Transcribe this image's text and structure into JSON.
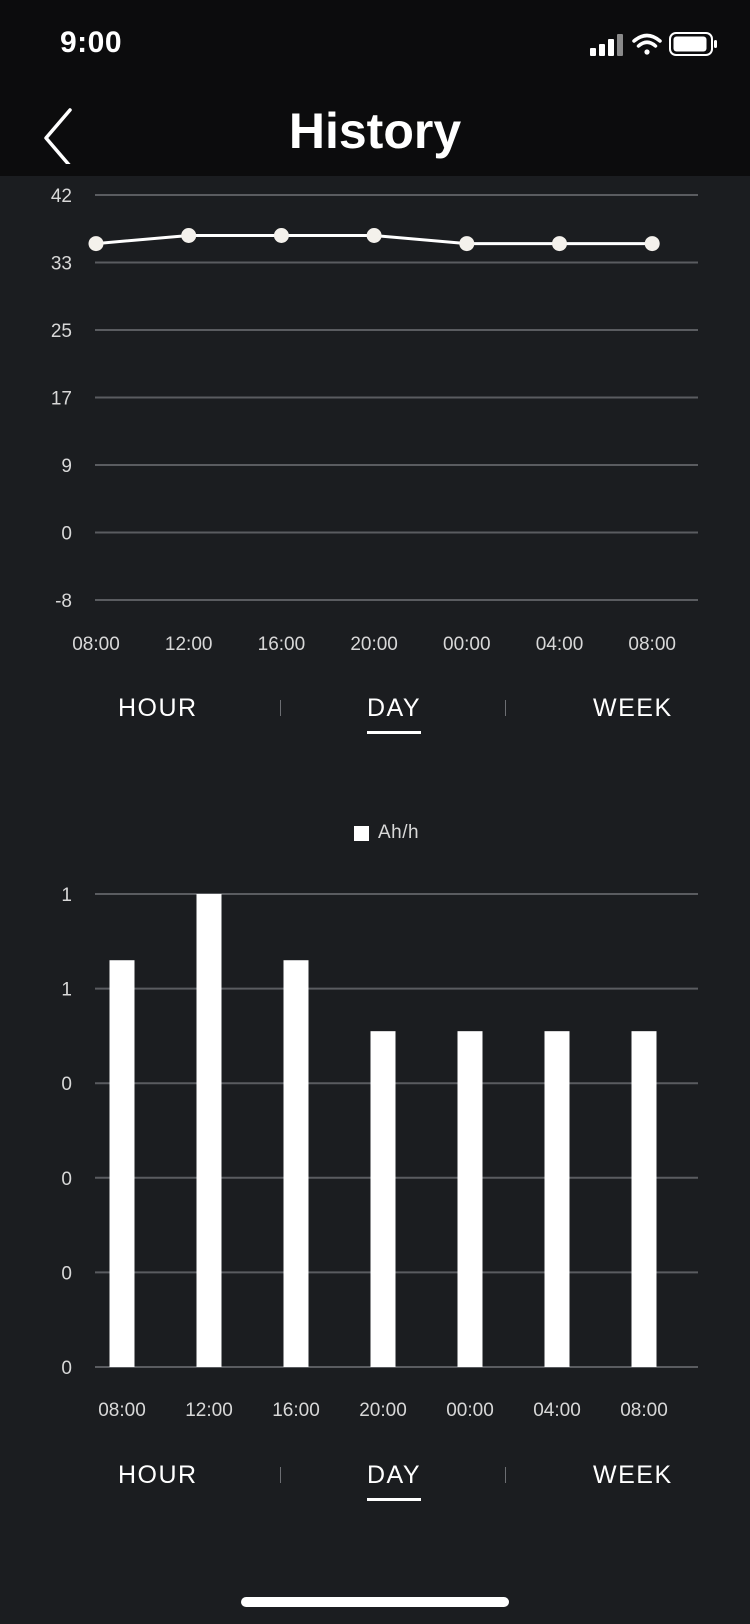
{
  "status_bar": {
    "time": "9:00"
  },
  "nav": {
    "title": "History"
  },
  "temperature_chart": {
    "type": "line",
    "x": [
      "08:00",
      "12:00",
      "16:00",
      "20:00",
      "00:00",
      "04:00",
      "08:00"
    ],
    "y": [
      36,
      37,
      37,
      37,
      36,
      36,
      36
    ],
    "yticks": [
      "42",
      "33",
      "25",
      "17",
      "9",
      "0",
      "-8"
    ],
    "ylim": [
      -8,
      42
    ],
    "grid": true,
    "line_color": "#ffffff"
  },
  "range_selector_top": {
    "options": [
      "HOUR",
      "DAY",
      "WEEK"
    ],
    "selected": "DAY"
  },
  "chart_data": {
    "type": "bar",
    "categories": [
      "08:00",
      "12:00",
      "16:00",
      "20:00",
      "00:00",
      "04:00",
      "08:00"
    ],
    "series": [
      {
        "name": "Ah/h",
        "values": [
          0.86,
          1.0,
          0.86,
          0.71,
          0.71,
          0.71,
          0.71
        ]
      }
    ],
    "yticks": [
      "1",
      "1",
      "0",
      "0",
      "0",
      "0"
    ],
    "ylim": [
      0,
      1.0
    ],
    "grid": true,
    "legend": "top-center",
    "bar_color": "#ffffff"
  },
  "range_selector_bottom": {
    "options": [
      "HOUR",
      "DAY",
      "WEEK"
    ],
    "selected": "DAY"
  }
}
